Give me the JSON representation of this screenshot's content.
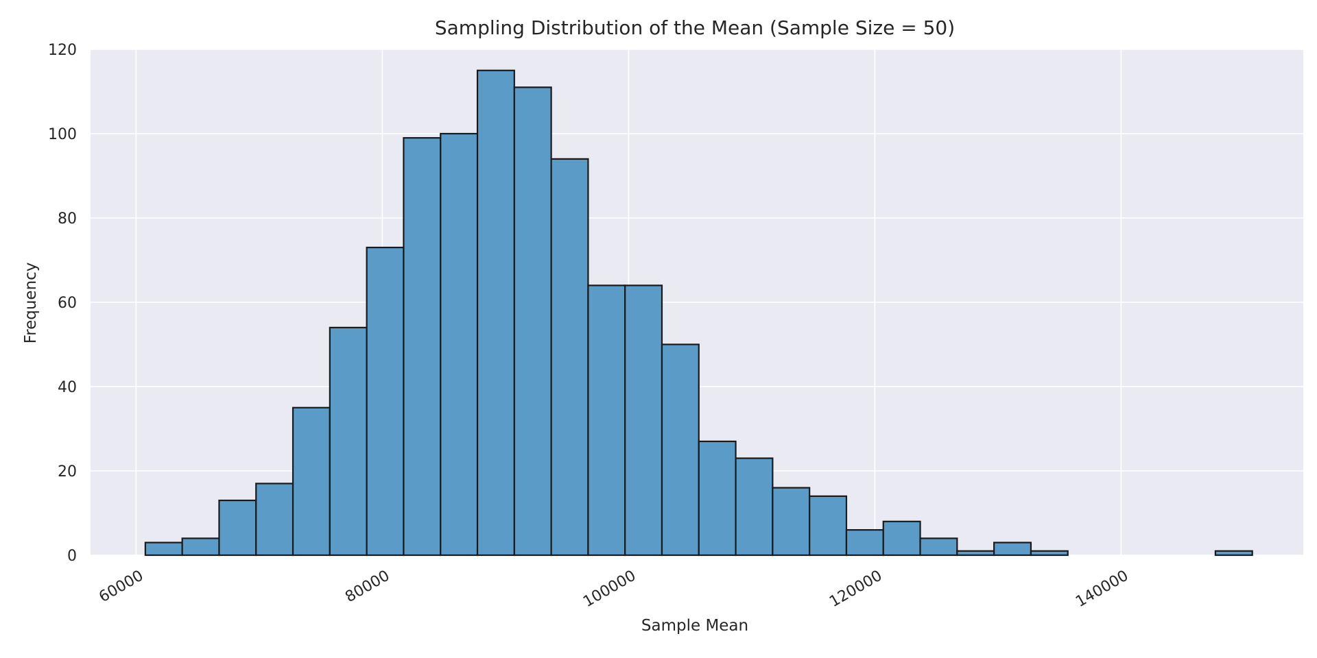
{
  "chart_data": {
    "type": "bar",
    "title": "Sampling Distribution of the Mean (Sample Size = 50)",
    "xlabel": "Sample Mean",
    "ylabel": "Frequency",
    "xlim": [
      56300,
      154800
    ],
    "ylim": [
      0,
      120
    ],
    "xticks": [
      60000,
      80000,
      100000,
      120000,
      140000
    ],
    "xtick_labels": [
      "60000",
      "80000",
      "100000",
      "120000",
      "140000"
    ],
    "yticks": [
      0,
      20,
      40,
      60,
      80,
      100,
      120
    ],
    "ytick_labels": [
      "0",
      "20",
      "40",
      "60",
      "80",
      "100",
      "120"
    ],
    "grid": true,
    "bin_start": 60750,
    "bin_width": 2997,
    "values": [
      3,
      4,
      13,
      17,
      35,
      54,
      73,
      99,
      100,
      115,
      111,
      94,
      64,
      64,
      50,
      27,
      23,
      16,
      14,
      6,
      8,
      4,
      1,
      3,
      1,
      0,
      0,
      0,
      0,
      1
    ],
    "colors": {
      "bar_fill": "#5a9bc8",
      "bar_edge": "#1a1a1a",
      "plot_background": "#eaeaf2",
      "grid": "#ffffff"
    }
  }
}
